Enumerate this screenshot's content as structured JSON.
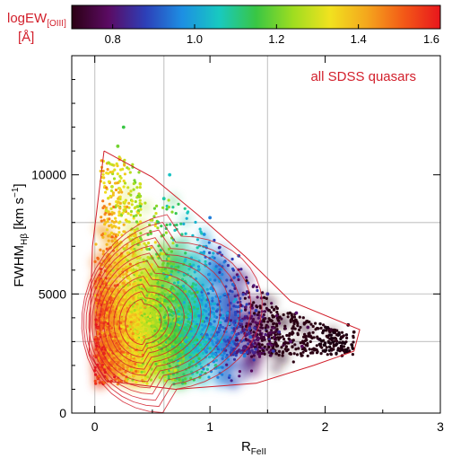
{
  "chart_data": {
    "type": "scatter",
    "annotation": "all SDSS quasars",
    "xlabel": {
      "main": "R",
      "sub": "FeII"
    },
    "ylabel": {
      "main": "FWHM",
      "sub": "Hβ",
      "unit_open": " [km s",
      "unit_sup": "−1",
      "unit_close": "]"
    },
    "x_ticks": [
      "0",
      "1",
      "2",
      "3"
    ],
    "y_ticks": [
      "0",
      "5000",
      "10000"
    ],
    "xlim": [
      -0.2,
      3.0
    ],
    "ylim": [
      0,
      15000
    ],
    "grid": true,
    "colorbar": {
      "title_main": "logEW",
      "title_sub": "[OIII]",
      "title_unit": "[Å]",
      "range": [
        0.7,
        1.6
      ],
      "ticks": [
        "0.8",
        "1.0",
        "1.2",
        "1.4",
        "1.6"
      ],
      "colormap": [
        "#2b0013",
        "#5b0b63",
        "#2d3fb8",
        "#1d8fe3",
        "#18c9c0",
        "#39c644",
        "#9edd20",
        "#f1e21f",
        "#f4a71d",
        "#f35a17",
        "#e8161d"
      ]
    },
    "series": [
      {
        "points": [
          [
            0.08,
            2500,
            1.58
          ],
          [
            0.12,
            1900,
            1.55
          ],
          [
            0.05,
            3500,
            1.5
          ],
          [
            0.1,
            4500,
            1.48
          ],
          [
            0.15,
            5200,
            1.45
          ],
          [
            0.2,
            6200,
            1.4
          ],
          [
            0.18,
            7200,
            1.35
          ],
          [
            0.1,
            8500,
            1.3
          ],
          [
            0.15,
            9500,
            1.28
          ],
          [
            0.12,
            10500,
            1.25
          ],
          [
            0.2,
            11200,
            1.2
          ],
          [
            0.25,
            12000,
            1.15
          ],
          [
            0.3,
            2200,
            1.45
          ],
          [
            0.35,
            3000,
            1.4
          ],
          [
            0.4,
            4000,
            1.3
          ],
          [
            0.45,
            5200,
            1.25
          ],
          [
            0.5,
            6500,
            1.2
          ],
          [
            0.55,
            8000,
            1.12
          ],
          [
            0.6,
            9000,
            1.08
          ],
          [
            0.65,
            10000,
            1.05
          ],
          [
            0.7,
            1800,
            1.3
          ],
          [
            0.75,
            2600,
            1.2
          ],
          [
            0.8,
            3500,
            1.12
          ],
          [
            0.85,
            4800,
            1.08
          ],
          [
            0.9,
            6000,
            1.02
          ],
          [
            0.95,
            7500,
            0.98
          ],
          [
            1.0,
            8200,
            0.95
          ],
          [
            1.05,
            2000,
            1.1
          ],
          [
            1.1,
            3000,
            1.02
          ],
          [
            1.15,
            4200,
            0.98
          ],
          [
            1.2,
            5400,
            0.93
          ],
          [
            1.25,
            6600,
            0.9
          ],
          [
            1.3,
            2400,
            0.95
          ],
          [
            1.35,
            3200,
            0.92
          ],
          [
            1.4,
            4300,
            0.88
          ],
          [
            1.5,
            5000,
            0.85
          ],
          [
            1.55,
            2600,
            0.86
          ],
          [
            1.6,
            3400,
            0.84
          ],
          [
            1.7,
            3000,
            0.8
          ],
          [
            1.75,
            4200,
            0.8
          ],
          [
            1.8,
            2800,
            0.78
          ],
          [
            1.85,
            3600,
            0.77
          ],
          [
            1.95,
            3100,
            0.75
          ],
          [
            2.0,
            2600,
            0.74
          ],
          [
            2.05,
            3500,
            0.72
          ],
          [
            2.1,
            2900,
            0.71
          ],
          [
            2.15,
            3200,
            0.7
          ],
          [
            2.2,
            3700,
            0.7
          ],
          [
            2.25,
            3400,
            0.7
          ]
        ]
      }
    ]
  }
}
